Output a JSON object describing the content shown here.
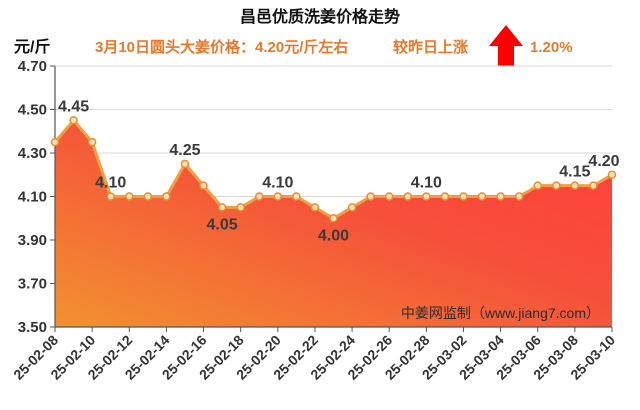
{
  "chart_data": {
    "type": "area",
    "title": "昌邑优质洗姜价格走势",
    "subtitle": "3月10日圆头大姜价格：4.20元/斤左右",
    "change": {
      "label": "较昨日上涨",
      "value": "1.20%",
      "icon": "up-arrow-icon",
      "icon_color": "#ff0000"
    },
    "ylabel": "元/斤",
    "ylim": [
      3.5,
      4.7
    ],
    "yticks": [
      "3.50",
      "3.70",
      "3.90",
      "4.10",
      "4.30",
      "4.50",
      "4.70"
    ],
    "xticks": [
      "25-02-08",
      "25-02-10",
      "25-02-12",
      "25-02-14",
      "25-02-16",
      "25-02-18",
      "25-02-20",
      "25-02-22",
      "25-02-24",
      "25-02-26",
      "25-02-28",
      "25-03-02",
      "25-03-04",
      "25-03-06",
      "25-03-08",
      "25-03-10"
    ],
    "x": [
      "25-02-08",
      "25-02-09",
      "25-02-10",
      "25-02-11",
      "25-02-12",
      "25-02-13",
      "25-02-14",
      "25-02-15",
      "25-02-16",
      "25-02-17",
      "25-02-18",
      "25-02-19",
      "25-02-20",
      "25-02-21",
      "25-02-22",
      "25-02-23",
      "25-02-24",
      "25-02-25",
      "25-02-26",
      "25-02-27",
      "25-02-28",
      "25-03-01",
      "25-03-02",
      "25-03-03",
      "25-03-04",
      "25-03-05",
      "25-03-06",
      "25-03-07",
      "25-03-08",
      "25-03-09",
      "25-03-10"
    ],
    "values": [
      4.35,
      4.45,
      4.35,
      4.1,
      4.1,
      4.1,
      4.1,
      4.25,
      4.15,
      4.05,
      4.05,
      4.1,
      4.1,
      4.1,
      4.05,
      4.0,
      4.05,
      4.1,
      4.1,
      4.1,
      4.1,
      4.1,
      4.1,
      4.1,
      4.1,
      4.1,
      4.15,
      4.15,
      4.15,
      4.15,
      4.2
    ],
    "data_labels": {
      "above": [
        {
          "index": 1,
          "text": "4.45"
        },
        {
          "index": 3,
          "text": "4.10"
        },
        {
          "index": 7,
          "text": "4.25"
        },
        {
          "index": 12,
          "text": "4.10"
        },
        {
          "index": 20,
          "text": "4.10"
        },
        {
          "index": 28,
          "text": "4.15"
        },
        {
          "index": 30,
          "text": "4.20"
        }
      ],
      "below": [
        {
          "index": 9,
          "text": "4.05"
        },
        {
          "index": 15,
          "text": "4.00"
        }
      ]
    },
    "watermark": "中姜网监制（www.jiang7.com）",
    "grid": true,
    "colors": {
      "accent_text": "#e8782a",
      "line": "#f0a040",
      "marker_fill": "#fde2b4",
      "marker_stroke": "#eb8c32",
      "fill_top": "#ff3c3c",
      "fill_bottom": "#f2922f",
      "axis": "#555555",
      "grid": "#d9d9d9"
    }
  }
}
